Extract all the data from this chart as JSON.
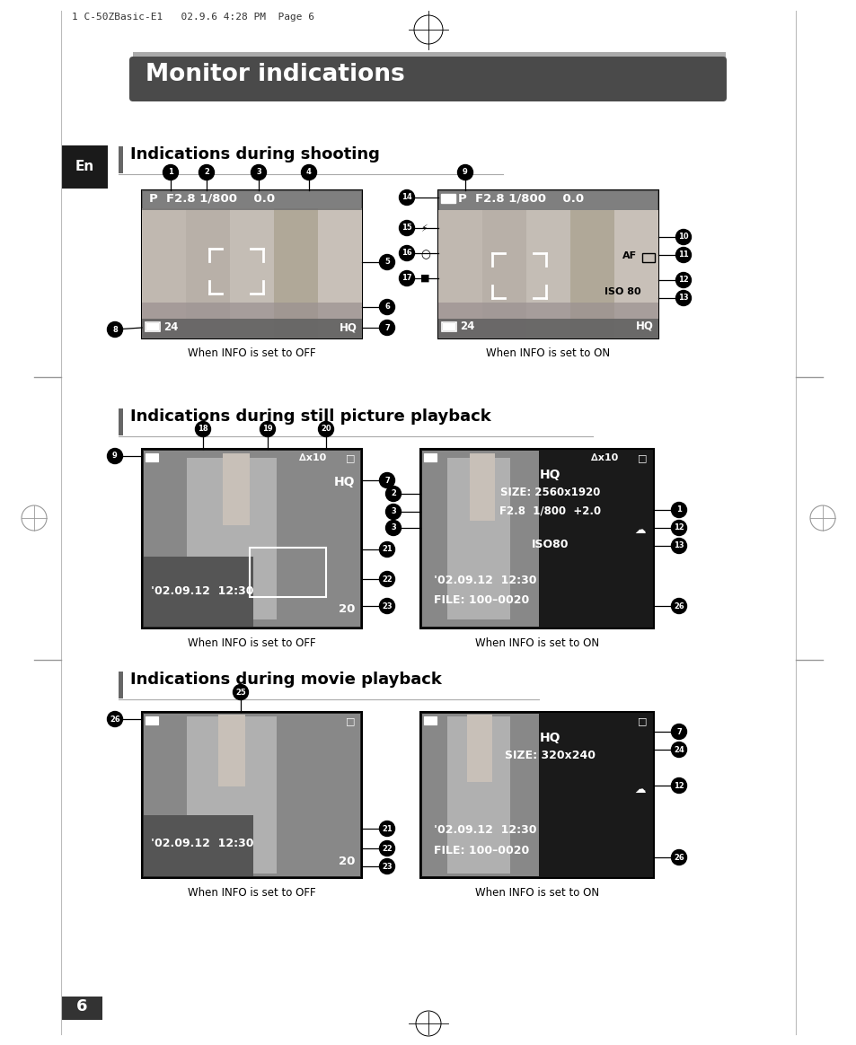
{
  "page_header": "1 C-50ZBasic-E1   02.9.6 4:28 PM  Page 6",
  "title": "Monitor indications",
  "title_bg_light": "#aaaaaa",
  "title_bg_dark": "#4a4a4a",
  "title_text_color": "#ffffff",
  "section1": "Indications during shooting",
  "section2": "Indications during still picture playback",
  "section3": "Indications during movie playback",
  "section_bar_color": "#666666",
  "caption_off": "When INFO is set to OFF",
  "caption_on": "When INFO is set to ON",
  "en_box_color": "#1a1a1a",
  "en_text": "En",
  "page_number": "6",
  "bg_color": "#ffffff",
  "screen_light_bg": "#cccccc",
  "screen_dark_bg": "#1a1a1a",
  "screen_border": "#000000",
  "callout_bg": "#000000",
  "callout_text": "#ffffff",
  "white": "#ffffff",
  "black": "#000000",
  "gray_medium": "#888888",
  "gray_dark": "#555555"
}
